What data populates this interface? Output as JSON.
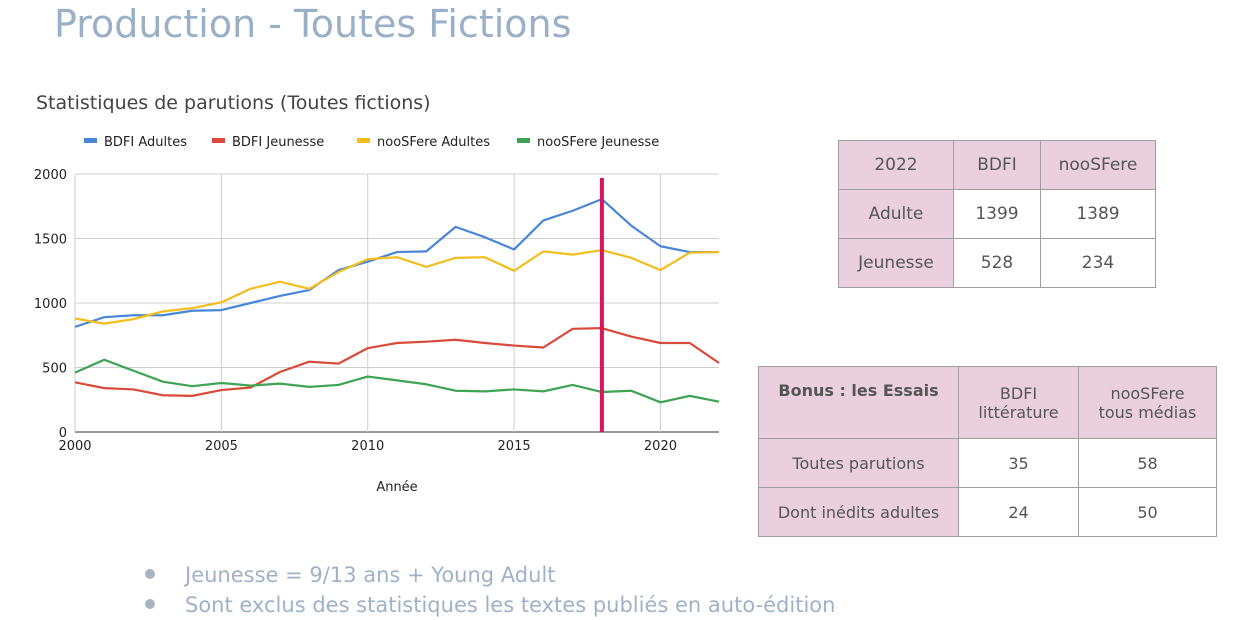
{
  "slide": {
    "title": "Production - Toutes Fictions"
  },
  "chart_data": {
    "type": "line",
    "title": "Statistiques de parutions (Toutes fictions)",
    "xlabel": "Année",
    "ylabel": "",
    "x": [
      2000,
      2001,
      2002,
      2003,
      2004,
      2005,
      2006,
      2007,
      2008,
      2009,
      2010,
      2011,
      2012,
      2013,
      2014,
      2015,
      2016,
      2017,
      2018,
      2019,
      2020,
      2021,
      2022
    ],
    "xlim": [
      2000,
      2022
    ],
    "ylim": [
      0,
      2000
    ],
    "x_ticks": [
      2000,
      2005,
      2010,
      2015,
      2020
    ],
    "y_ticks": [
      0,
      500,
      1000,
      1500,
      2000
    ],
    "grid": true,
    "legend_position": "top",
    "marker_line": {
      "x": 2018,
      "color": "#d6175e"
    },
    "series": [
      {
        "name": "BDFI Adultes",
        "color": "#4a86d8",
        "values": [
          815,
          890,
          905,
          905,
          940,
          945,
          1000,
          1055,
          1100,
          1255,
          1320,
          1395,
          1400,
          1590,
          1510,
          1415,
          1640,
          1715,
          1805,
          1600,
          1440,
          1395,
          1395
        ]
      },
      {
        "name": "BDFI Jeunesse",
        "color": "#d84a3a",
        "values": [
          385,
          340,
          330,
          285,
          280,
          325,
          345,
          465,
          545,
          530,
          650,
          690,
          700,
          715,
          690,
          670,
          655,
          800,
          805,
          740,
          690,
          690,
          535
        ]
      },
      {
        "name": "nooSFere Adultes",
        "color": "#f2bd1d",
        "values": [
          880,
          840,
          875,
          935,
          960,
          1005,
          1110,
          1165,
          1110,
          1240,
          1340,
          1355,
          1280,
          1350,
          1355,
          1250,
          1400,
          1375,
          1410,
          1350,
          1255,
          1390,
          1395
        ]
      },
      {
        "name": "nooSFere Jeunesse",
        "color": "#3ea352",
        "values": [
          460,
          560,
          475,
          390,
          355,
          380,
          360,
          375,
          350,
          365,
          430,
          400,
          370,
          320,
          315,
          330,
          315,
          365,
          310,
          320,
          230,
          280,
          235
        ]
      }
    ]
  },
  "table_2022": {
    "header": [
      "2022",
      "BDFI",
      "nooSFere"
    ],
    "rows": [
      {
        "label": "Adulte",
        "bdfi": "1399",
        "noosfere": "1389"
      },
      {
        "label": "Jeunesse",
        "bdfi": "528",
        "noosfere": "234"
      }
    ]
  },
  "table_essais": {
    "header_label": "Bonus : les Essais",
    "col1_line1": "BDFI",
    "col1_line2": "littérature",
    "col2_line1": "nooSFere",
    "col2_line2": "tous médias",
    "rows": [
      {
        "label": "Toutes parutions",
        "bdfi": "35",
        "noosfere": "58"
      },
      {
        "label": "Dont inédits adultes",
        "bdfi": "24",
        "noosfere": "50"
      }
    ]
  },
  "notes": [
    "Jeunesse = 9/13 ans + Young Adult",
    "Sont exclus des statistiques les textes publiés en auto-édition"
  ]
}
